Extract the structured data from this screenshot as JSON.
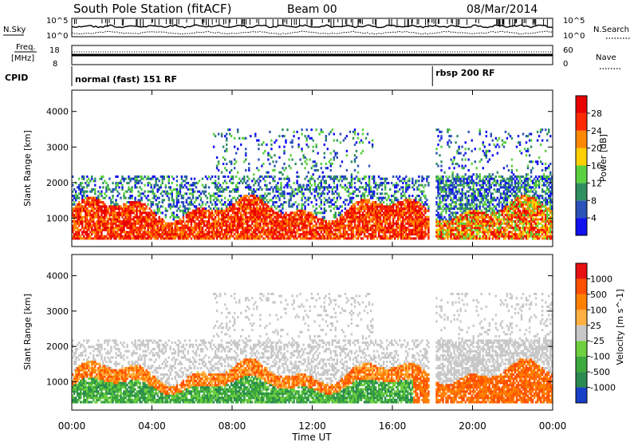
{
  "header": {
    "title": "South Pole Station (fitACF)",
    "beam": "Beam 00",
    "date": "08/Mar/2014"
  },
  "noise_panel": {
    "left_label": "N.Sky",
    "right_label": "N.Search",
    "left_ticks": [
      "10^5",
      "10^0"
    ],
    "right_ticks": [
      "10^5",
      "10^0"
    ]
  },
  "freq_panel": {
    "left_label_1": "Freq.",
    "left_label_2": "[MHz]",
    "right_label": "Nave",
    "left_ticks": [
      "18",
      "8"
    ],
    "right_ticks": [
      "60",
      "0"
    ]
  },
  "cpid": {
    "label": "CPID",
    "modes": [
      {
        "name": "normal (fast) 151 RF",
        "start_hour": 0
      },
      {
        "name": "rbsp 200 RF",
        "start_hour": 18
      }
    ]
  },
  "chart_data": [
    {
      "type": "heatmap",
      "quantity": "Power",
      "ylabel": "Slant Range [km]",
      "ylim": [
        200,
        4600
      ],
      "yticks": [
        "1000",
        "2000",
        "3000",
        "4000"
      ],
      "xlim": [
        0,
        24
      ],
      "colorbar": {
        "label": "Power [dB]",
        "ticks": [
          "4",
          "8",
          "12",
          "16",
          "20",
          "24",
          "28"
        ],
        "colors": [
          "#1010f0",
          "#2a52b8",
          "#2f8f60",
          "#5bd040",
          "#ffd000",
          "#ff8800",
          "#ff2a00",
          "#e80000"
        ]
      }
    },
    {
      "type": "heatmap",
      "quantity": "Velocity",
      "ylabel": "Slant Range [km]",
      "ylim": [
        200,
        4600
      ],
      "yticks": [
        "1000",
        "2000",
        "3000",
        "4000"
      ],
      "xlim": [
        0,
        24
      ],
      "colorbar": {
        "label": "Velocity [m s^-1]",
        "ticks": [
          "1000",
          "500",
          "100",
          "25",
          "-25",
          "-100",
          "-500",
          "-1000"
        ],
        "colors": [
          "#1840c8",
          "#2a8a50",
          "#3caa3c",
          "#6ed040",
          "#c8c8c8",
          "#ffb040",
          "#ff8000",
          "#ff5000",
          "#e81010"
        ]
      }
    }
  ],
  "xaxis": {
    "label": "Time UT",
    "ticks": [
      "00:00",
      "04:00",
      "08:00",
      "12:00",
      "16:00",
      "20:00",
      "00:00"
    ]
  }
}
